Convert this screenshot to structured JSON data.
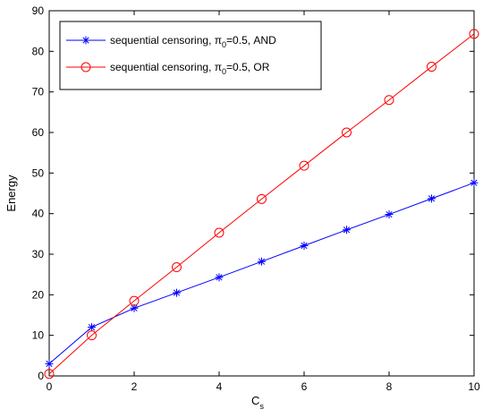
{
  "chart_data": {
    "type": "line",
    "xlabel": "C",
    "xlabel_sub": "s",
    "ylabel": "Energy",
    "xlim": [
      0,
      10
    ],
    "ylim": [
      0,
      90
    ],
    "xticks": [
      0,
      2,
      4,
      6,
      8,
      10
    ],
    "yticks": [
      0,
      10,
      20,
      30,
      40,
      50,
      60,
      70,
      80,
      90
    ],
    "grid": false,
    "legend_position": "top-left",
    "series": [
      {
        "name": "sequential censoring, π0=0.5, AND",
        "legend_parts": [
          "sequential censoring, π",
          "0",
          "=0.5, AND"
        ],
        "color": "#0000ff",
        "marker": "asterisk",
        "x": [
          0,
          1,
          2,
          3,
          4,
          5,
          6,
          7,
          8,
          9,
          10
        ],
        "values": [
          3,
          12,
          16.7,
          20.5,
          24.3,
          28.2,
          32.1,
          36,
          39.8,
          43.7,
          47.6
        ]
      },
      {
        "name": "sequential censoring, π0=0.5, OR",
        "legend_parts": [
          "sequential censoring, π",
          "0",
          "=0.5, OR"
        ],
        "color": "#ff0000",
        "marker": "circle",
        "x": [
          0,
          1,
          2,
          3,
          4,
          5,
          6,
          7,
          8,
          9,
          10
        ],
        "values": [
          0.5,
          10,
          18.5,
          26.8,
          35.3,
          43.6,
          51.8,
          60,
          68,
          76.2,
          84.3
        ]
      }
    ]
  }
}
